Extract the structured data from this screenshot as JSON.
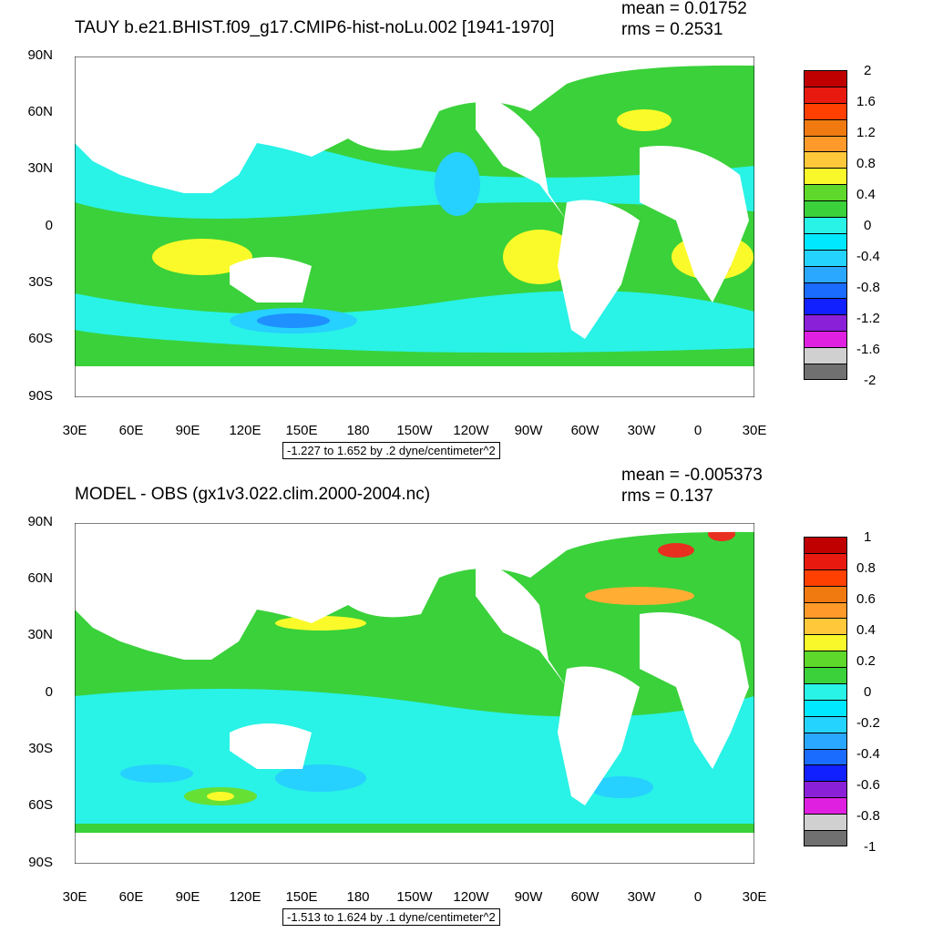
{
  "colors": {
    "ocean_background": "#29f2e6",
    "land": "#ffffff",
    "green": "#3ad13a",
    "light_green": "#66e033",
    "cyan": "#00f0f0",
    "light_cyan": "#8ff5f0",
    "sky_blue": "#26d0ff",
    "blue": "#1e90ff",
    "yellow": "#fafa2a",
    "orange": "#ffae33",
    "red": "#e83020"
  },
  "panels": [
    {
      "title": "TAUY b.e21.BHIST.f09_g17.CMIP6-hist-noLu.002 [1941-1970]",
      "mean": "mean = 0.01752",
      "rms": "rms = 0.2531",
      "range_label": "-1.227 to 1.652 by .2 dyne/centimeter^2",
      "colorbar_labels": [
        "2",
        "1.6",
        "1.2",
        "0.8",
        "0.4",
        "0",
        "-0.4",
        "-0.8",
        "-1.2",
        "-1.6",
        "-2"
      ],
      "colorbar_colors": [
        "#c00000",
        "#e81a10",
        "#ff4000",
        "#f07a10",
        "#ff9a2a",
        "#ffc83a",
        "#f8f82a",
        "#5ed82a",
        "#3ad13a",
        "#29f2e6",
        "#00e8ff",
        "#24d4ff",
        "#2aa8ff",
        "#1a6cff",
        "#1020ff",
        "#8a20d8",
        "#e020e0",
        "#d0d0d0",
        "#707070"
      ]
    },
    {
      "title": "MODEL - OBS (gx1v3.022.clim.2000-2004.nc)",
      "mean": "mean = -0.005373",
      "rms": "rms = 0.137",
      "range_label": "-1.513 to 1.624 by .1 dyne/centimeter^2",
      "colorbar_labels": [
        "1",
        "0.8",
        "0.6",
        "0.4",
        "0.2",
        "0",
        "-0.2",
        "-0.4",
        "-0.6",
        "-0.8",
        "-1"
      ],
      "colorbar_colors": [
        "#c00000",
        "#e81a10",
        "#ff4000",
        "#f07a10",
        "#ff9a2a",
        "#ffc83a",
        "#f8f82a",
        "#5ed82a",
        "#3ad13a",
        "#29f2e6",
        "#00e8ff",
        "#24d4ff",
        "#2aa8ff",
        "#1a6cff",
        "#1020ff",
        "#8a20d8",
        "#e020e0",
        "#d0d0d0",
        "#707070"
      ]
    }
  ],
  "lat_labels": [
    "90N",
    "60N",
    "30N",
    "0",
    "30S",
    "60S",
    "90S"
  ],
  "lon_labels": [
    "30E",
    "60E",
    "90E",
    "120E",
    "150E",
    "180",
    "150W",
    "120W",
    "90W",
    "60W",
    "30W",
    "0",
    "30E"
  ]
}
